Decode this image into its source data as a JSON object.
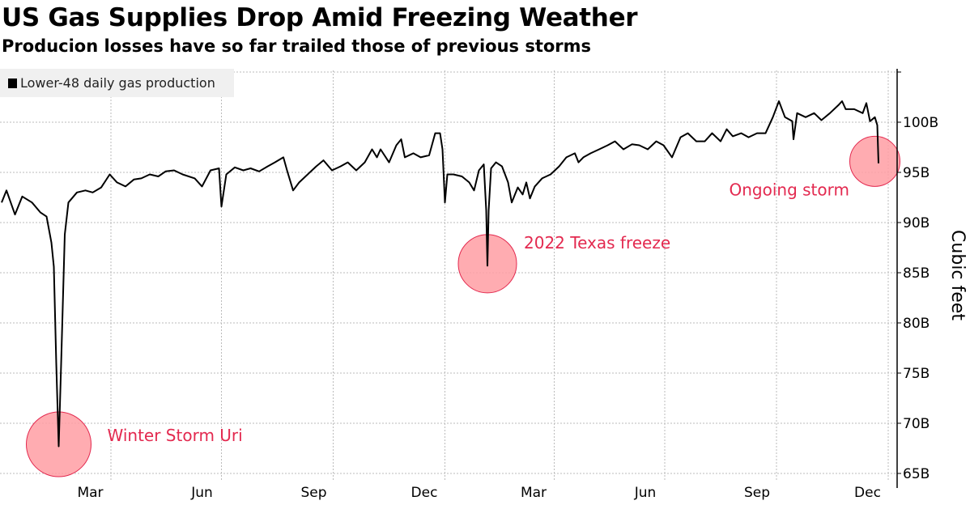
{
  "header": {
    "title": "US Gas Supplies Drop Amid Freezing Weather",
    "subtitle": "Producion losses have so far trailed those of previous storms"
  },
  "chart_data": {
    "type": "line",
    "title": "US Gas Supplies Drop Amid Freezing Weather",
    "subtitle": "Producion losses have so far trailed those of previous storms",
    "xlabel": "",
    "ylabel": "Cubic feet",
    "x_unit": "days since 2021-01-01",
    "xlim": [
      -1,
      737
    ],
    "ylim": [
      65,
      105.2
    ],
    "grid": true,
    "legend_placement": "top-left",
    "x_gridlines": [
      90,
      181,
      273,
      365,
      455,
      546,
      638,
      730
    ],
    "x_ticks": [
      {
        "x": 73,
        "label": "Mar"
      },
      {
        "x": 165,
        "label": "Jun"
      },
      {
        "x": 257,
        "label": "Sep"
      },
      {
        "x": 348,
        "label": "Dec"
      },
      {
        "x": 438,
        "label": "Mar"
      },
      {
        "x": 530,
        "label": "Jun"
      },
      {
        "x": 622,
        "label": "Sep"
      },
      {
        "x": 713,
        "label": "Dec"
      }
    ],
    "y_ticks": [
      {
        "y": 65,
        "label": "65B"
      },
      {
        "y": 70,
        "label": "70B"
      },
      {
        "y": 75,
        "label": "75B"
      },
      {
        "y": 80,
        "label": "80B"
      },
      {
        "y": 85,
        "label": "85B"
      },
      {
        "y": 90,
        "label": "90B"
      },
      {
        "y": 95,
        "label": "95B"
      },
      {
        "y": 100,
        "label": "100B"
      },
      {
        "y": 105,
        "label": ""
      }
    ],
    "series": [
      {
        "name": "Lower-48 daily gas production",
        "color": "#000000",
        "x": [
          0,
          4,
          11,
          17,
          25,
          32,
          37,
          41,
          43,
          45,
          47,
          49,
          52,
          55,
          62,
          69,
          75,
          82,
          89,
          95,
          102,
          109,
          115,
          122,
          129,
          135,
          142,
          149,
          159,
          165,
          172,
          179,
          181,
          185,
          192,
          199,
          205,
          212,
          219,
          225,
          232,
          235,
          240,
          245,
          252,
          259,
          265,
          272,
          279,
          285,
          292,
          299,
          305,
          309,
          312,
          319,
          325,
          329,
          332,
          339,
          345,
          352,
          357,
          361,
          363,
          365,
          367,
          372,
          379,
          385,
          389,
          393,
          397,
          399,
          400,
          401,
          403,
          407,
          412,
          417,
          420,
          425,
          429,
          432,
          435,
          439,
          445,
          452,
          459,
          465,
          472,
          475,
          479,
          485,
          492,
          499,
          505,
          512,
          519,
          525,
          532,
          539,
          545,
          552,
          559,
          565,
          572,
          579,
          585,
          592,
          597,
          602,
          609,
          615,
          622,
          629,
          635,
          640,
          645,
          651,
          652,
          655,
          662,
          669,
          675,
          682,
          689,
          692,
          695,
          702,
          709,
          712,
          715,
          719,
          721,
          722
        ],
        "y": [
          92.0,
          93.2,
          90.8,
          92.6,
          92.0,
          91.0,
          90.6,
          88.0,
          85.6,
          75.9,
          67.7,
          75.9,
          88.8,
          92.0,
          93.0,
          93.2,
          93.0,
          93.5,
          94.8,
          94.0,
          93.6,
          94.3,
          94.4,
          94.8,
          94.6,
          95.1,
          95.2,
          94.8,
          94.4,
          93.6,
          95.2,
          95.4,
          91.6,
          94.8,
          95.5,
          95.2,
          95.4,
          95.1,
          95.6,
          96.0,
          96.5,
          95.2,
          93.2,
          94.0,
          94.8,
          95.6,
          96.2,
          95.2,
          95.6,
          96.0,
          95.2,
          96.0,
          97.3,
          96.5,
          97.3,
          96.0,
          97.7,
          98.3,
          96.5,
          96.9,
          96.5,
          96.7,
          98.9,
          98.9,
          97.3,
          92.0,
          94.8,
          94.8,
          94.6,
          94.0,
          93.2,
          95.2,
          95.8,
          91.2,
          85.7,
          91.2,
          95.4,
          96.0,
          95.6,
          94.0,
          92.0,
          93.5,
          92.8,
          94.0,
          92.4,
          93.6,
          94.4,
          94.8,
          95.6,
          96.5,
          96.9,
          96.0,
          96.5,
          96.9,
          97.3,
          97.7,
          98.1,
          97.3,
          97.8,
          97.7,
          97.3,
          98.1,
          97.7,
          96.5,
          98.5,
          98.9,
          98.1,
          98.1,
          98.9,
          98.1,
          99.3,
          98.6,
          98.9,
          98.5,
          98.9,
          98.9,
          100.5,
          102.1,
          100.5,
          100.1,
          98.3,
          100.9,
          100.5,
          100.9,
          100.2,
          100.9,
          101.7,
          102.1,
          101.3,
          101.3,
          100.9,
          101.9,
          100.1,
          100.5,
          99.7,
          95.9
        ]
      }
    ],
    "annotations": [
      {
        "text": "Winter Storm Uri",
        "x": 47,
        "y": 67.9
      },
      {
        "text": "2022 Texas freeze",
        "x": 400,
        "y": 85.9
      },
      {
        "text": "Ongoing storm",
        "x": 719,
        "y": 96.1
      }
    ],
    "annotation_colors": {
      "circle_fill": "#ff9ea3",
      "circle_stroke": "#e3294f",
      "text": "#e3294f"
    }
  }
}
